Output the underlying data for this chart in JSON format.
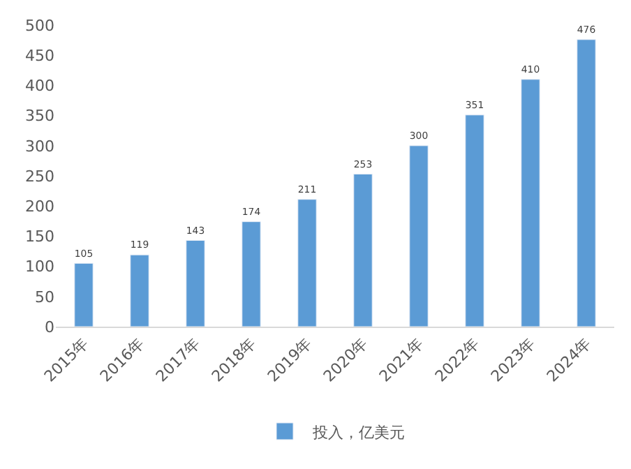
{
  "chart_data": {
    "type": "bar",
    "categories": [
      "2015年",
      "2016年",
      "2017年",
      "2018年",
      "2019年",
      "2020年",
      "2021年",
      "2022年",
      "2023年",
      "2024年"
    ],
    "series": [
      {
        "name": "投入，亿美元",
        "color": "#5b9bd5",
        "values": [
          105,
          119,
          143,
          174,
          211,
          253,
          300,
          351,
          410,
          476
        ]
      }
    ],
    "ylim": [
      0,
      500
    ],
    "yticks": [
      0,
      50,
      100,
      150,
      200,
      250,
      300,
      350,
      400,
      450,
      500
    ],
    "grid": false,
    "legend": "bottom",
    "data_labels": true
  }
}
